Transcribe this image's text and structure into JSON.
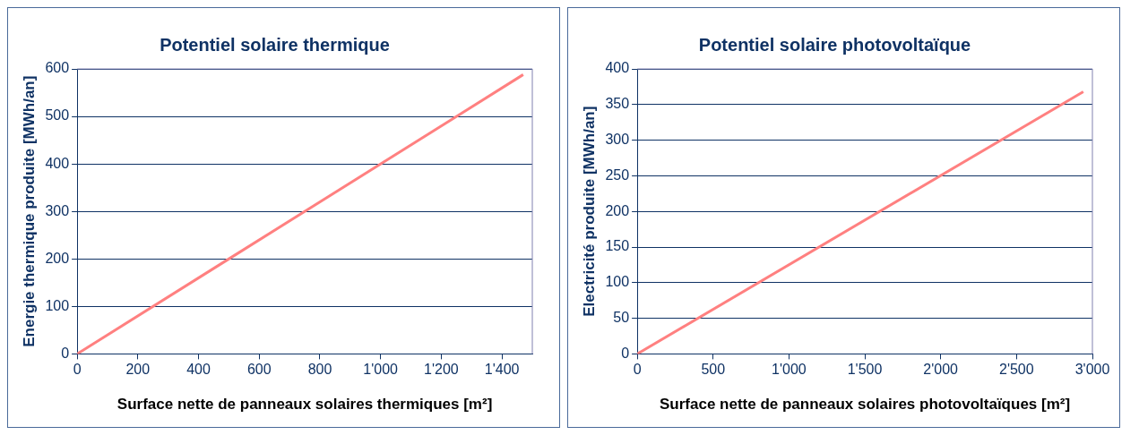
{
  "chart_data": [
    {
      "type": "line",
      "title": "Potentiel solaire thermique",
      "xlabel": "Surface nette de panneaux solaires thermiques [m²]",
      "ylabel": "Energie thermique produite [MWh/an]",
      "series": [
        {
          "color": "#ff8080",
          "x": [
            0,
            1470
          ],
          "values": [
            0,
            588
          ]
        }
      ],
      "xlim": [
        0,
        1500
      ],
      "xticks": [
        0,
        200,
        400,
        600,
        800,
        {
          "value": 1000,
          "label": "1'000"
        },
        {
          "value": 1200,
          "label": "1'200"
        },
        {
          "value": 1400,
          "label": "1'400"
        }
      ],
      "ylim": [
        0,
        600
      ],
      "yticks": [
        0,
        100,
        200,
        300,
        400,
        500,
        600
      ],
      "grid": "y",
      "legend": false,
      "marker": "none"
    },
    {
      "type": "line",
      "title": "Potentiel solaire photovoltaïque",
      "xlabel": "Surface nette de panneaux solaires photovoltaïques [m²]",
      "ylabel": "Electricité produite [MWh/an]",
      "series": [
        {
          "color": "#ff8080",
          "x": [
            0,
            2940
          ],
          "values": [
            0,
            368
          ]
        }
      ],
      "xlim": [
        0,
        3000
      ],
      "xticks": [
        0,
        500,
        {
          "value": 1000,
          "label": "1'000"
        },
        {
          "value": 1500,
          "label": "1'500"
        },
        {
          "value": 2000,
          "label": "2'000"
        },
        {
          "value": 2500,
          "label": "2'500"
        },
        {
          "value": 3000,
          "label": "3'000"
        }
      ],
      "ylim": [
        0,
        400
      ],
      "yticks": [
        0,
        50,
        100,
        150,
        200,
        250,
        300,
        350,
        400
      ],
      "grid": "y",
      "legend": false,
      "marker": "none"
    }
  ]
}
